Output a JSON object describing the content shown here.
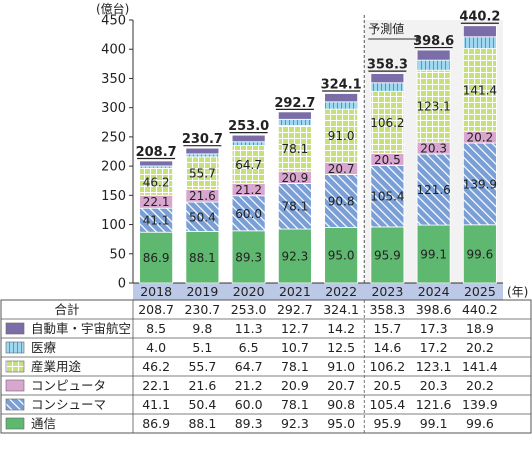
{
  "chart_data": {
    "type": "bar",
    "stacked": true,
    "y_unit_label": "(億台)",
    "x_unit_label": "(年)",
    "ylim": [
      0,
      450
    ],
    "y_ticks": [
      0,
      50,
      100,
      150,
      200,
      250,
      300,
      350,
      400,
      450
    ],
    "grid": false,
    "forecast_label": "予測値",
    "forecast_from": "2023",
    "categories": [
      "2018",
      "2019",
      "2020",
      "2021",
      "2022",
      "2023",
      "2024",
      "2025"
    ],
    "totals_label": "合計",
    "totals": [
      "208.7",
      "230.7",
      "253.0",
      "292.7",
      "324.1",
      "358.3",
      "398.6",
      "440.2"
    ],
    "series": [
      {
        "name": "通信",
        "color": "#5fb86f",
        "pattern": "solid",
        "values": [
          86.9,
          88.1,
          89.3,
          92.3,
          95.0,
          95.9,
          99.1,
          99.6
        ]
      },
      {
        "name": "コンシューマ",
        "color": "#7a9fd6",
        "pattern": "diagonal",
        "values": [
          41.1,
          50.4,
          60.0,
          78.1,
          90.8,
          105.4,
          121.6,
          139.9
        ]
      },
      {
        "name": "コンピュータ",
        "color": "#d9a6cf",
        "pattern": "solid",
        "values": [
          22.1,
          21.6,
          21.2,
          20.9,
          20.7,
          20.5,
          20.3,
          20.2
        ]
      },
      {
        "name": "産業用途",
        "color": "#c8e07a",
        "pattern": "grid",
        "values": [
          46.2,
          55.7,
          64.7,
          78.1,
          91.0,
          106.2,
          123.1,
          141.4
        ]
      },
      {
        "name": "医療",
        "color": "#9fd8f0",
        "pattern": "vertical",
        "values": [
          4.0,
          5.1,
          6.5,
          10.7,
          12.5,
          14.6,
          17.2,
          20.2
        ]
      },
      {
        "name": "自動車・宇宙航空",
        "color": "#7b6ea8",
        "pattern": "solid",
        "values": [
          8.5,
          9.8,
          11.3,
          12.7,
          14.2,
          15.7,
          17.3,
          18.9
        ]
      }
    ],
    "label_inside_series": [
      "通信",
      "コンシューマ",
      "コンピュータ",
      "産業用途"
    ],
    "table_value_strings": {
      "自動車・宇宙航空": [
        "8.5",
        "9.8",
        "11.3",
        "12.7",
        "14.2",
        "15.7",
        "17.3",
        "18.9"
      ],
      "医療": [
        "4.0",
        "5.1",
        "6.5",
        "10.7",
        "12.5",
        "14.6",
        "17.2",
        "20.2"
      ],
      "産業用途": [
        "46.2",
        "55.7",
        "64.7",
        "78.1",
        "91.0",
        "106.2",
        "123.1",
        "141.4"
      ],
      "コンピュータ": [
        "22.1",
        "21.6",
        "21.2",
        "20.9",
        "20.7",
        "20.5",
        "20.3",
        "20.2"
      ],
      "コンシューマ": [
        "41.1",
        "50.4",
        "60.0",
        "78.1",
        "90.8",
        "105.4",
        "121.6",
        "139.9"
      ],
      "通信": [
        "86.9",
        "88.1",
        "89.3",
        "92.3",
        "95.0",
        "95.9",
        "99.1",
        "99.6"
      ]
    },
    "table_row_order": [
      "自動車・宇宙航空",
      "医療",
      "産業用途",
      "コンピュータ",
      "コンシューマ",
      "通信"
    ]
  }
}
